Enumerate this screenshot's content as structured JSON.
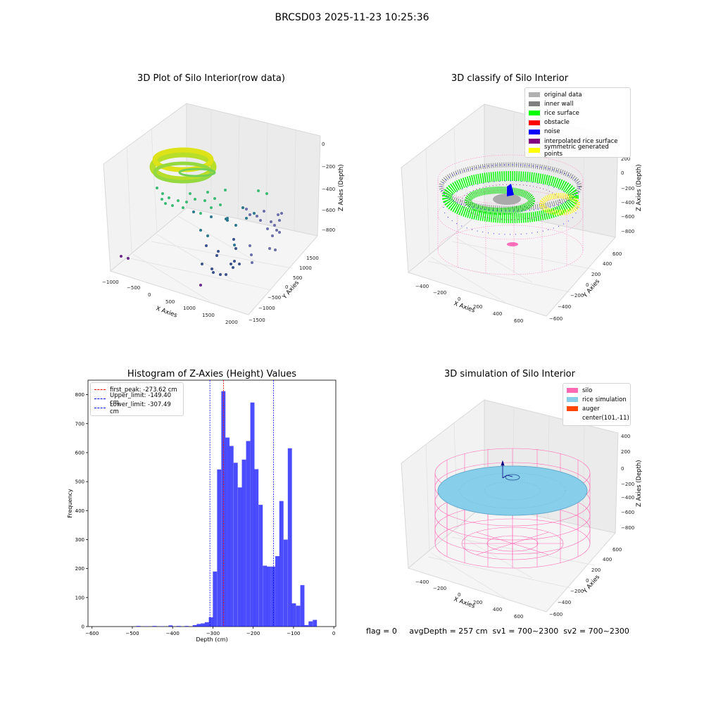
{
  "suptitle": "BRCSD03 2025-11-23 10:25:36",
  "panels": {
    "raw": {
      "title": "3D Plot of Silo Interior(row data)",
      "xlabel": "X Axies",
      "ylabel": "Y Axies",
      "zlabel": "Z Axies (Depth)",
      "xticks": [
        "−1000",
        "−500",
        "0",
        "500",
        "1000",
        "1500",
        "2000"
      ],
      "yticks": [
        "−1500",
        "−1000",
        "−500",
        "0",
        "500",
        "1000",
        "1500"
      ],
      "zticks": [
        "0",
        "−200",
        "−400",
        "−600",
        "−800"
      ]
    },
    "classify": {
      "title": "3D classify of Silo Interior",
      "xlabel": "X Axies",
      "ylabel": "Y Axies",
      "zlabel": "Z Axies (Depth)",
      "xticks": [
        "−400",
        "−200",
        "0",
        "200",
        "400",
        "600"
      ],
      "yticks": [
        "−600",
        "−400",
        "−200",
        "0",
        "200",
        "400",
        "600"
      ],
      "zticks": [
        "200",
        "0",
        "−200",
        "−400",
        "−600",
        "−800"
      ],
      "legend": [
        {
          "label": "original data",
          "color": "#b0b0b0"
        },
        {
          "label": "inner wall",
          "color": "#808080"
        },
        {
          "label": "rice surface",
          "color": "#00ff00"
        },
        {
          "label": "obstacle",
          "color": "#ff0000"
        },
        {
          "label": "noise",
          "color": "#0000ff"
        },
        {
          "label": "interpolated rice surface",
          "color": "#800080"
        },
        {
          "label": "symmetric generated points",
          "color": "#ffff00"
        }
      ]
    },
    "simulation": {
      "title": "3D simulation of Silo Interior",
      "xlabel": "X Axies",
      "ylabel": "Y Axies",
      "zlabel": "Z Axies (Depth)",
      "xticks": [
        "−400",
        "−200",
        "0",
        "200",
        "400",
        "600"
      ],
      "yticks": [
        "−600",
        "−400",
        "−200",
        "0",
        "200",
        "400",
        "600"
      ],
      "zticks": [
        "400",
        "200",
        "0",
        "−200",
        "−400",
        "−600",
        "−800"
      ],
      "legend": [
        {
          "label": "silo",
          "color": "#ff69b4"
        },
        {
          "label": "rice simulation",
          "color": "#87ceeb"
        },
        {
          "label": "auger",
          "color": "#ff4500"
        },
        {
          "label": "center(101,-11)",
          "color": ""
        }
      ]
    }
  },
  "chart_data": {
    "type": "bar",
    "title": "Histogram of Z-Axies (Height) Values",
    "xlabel": "Depth (cm)",
    "ylabel": "Frequency",
    "xlim": [
      -610,
      5
    ],
    "ylim": [
      0,
      850
    ],
    "xticks": [
      -600,
      -500,
      -400,
      -300,
      -200,
      -100,
      0
    ],
    "yticks": [
      0,
      100,
      200,
      300,
      400,
      500,
      600,
      700,
      800
    ],
    "bin_width": 10.3,
    "bar_color": "#0000ff",
    "bins": [
      {
        "x": -485,
        "count": 2
      },
      {
        "x": -465,
        "count": 1
      },
      {
        "x": -445,
        "count": 2
      },
      {
        "x": -425,
        "count": 1
      },
      {
        "x": -405,
        "count": 4
      },
      {
        "x": -385,
        "count": 2
      },
      {
        "x": -365,
        "count": 2
      },
      {
        "x": -345,
        "count": 5
      },
      {
        "x": -335,
        "count": 9
      },
      {
        "x": -325,
        "count": 11
      },
      {
        "x": -315,
        "count": 15
      },
      {
        "x": -305,
        "count": 32
      },
      {
        "x": -295,
        "count": 190
      },
      {
        "x": -284.5,
        "count": 542
      },
      {
        "x": -274,
        "count": 812
      },
      {
        "x": -264,
        "count": 652
      },
      {
        "x": -254,
        "count": 623
      },
      {
        "x": -243.5,
        "count": 565
      },
      {
        "x": -233,
        "count": 480
      },
      {
        "x": -223,
        "count": 576
      },
      {
        "x": -212.5,
        "count": 640
      },
      {
        "x": -202,
        "count": 773
      },
      {
        "x": -192,
        "count": 543
      },
      {
        "x": -181.5,
        "count": 420
      },
      {
        "x": -171,
        "count": 210
      },
      {
        "x": -161,
        "count": 207
      },
      {
        "x": -150.5,
        "count": 207
      },
      {
        "x": -140,
        "count": 243
      },
      {
        "x": -130,
        "count": 433
      },
      {
        "x": -119.5,
        "count": 300
      },
      {
        "x": -109,
        "count": 615
      },
      {
        "x": -99,
        "count": 80
      },
      {
        "x": -88.5,
        "count": 72
      },
      {
        "x": -78,
        "count": 143
      },
      {
        "x": -68,
        "count": 5
      },
      {
        "x": -57.5,
        "count": 18
      },
      {
        "x": -47,
        "count": 23
      }
    ],
    "lines": [
      {
        "label": "first_peak: -273.62 cm",
        "x": -273.62,
        "color": "#ff0000"
      },
      {
        "label": "Upper_limit: -149.40 cm",
        "x": -149.4,
        "color": "#0000ff"
      },
      {
        "label": "Lower_limit: -307.49 cm",
        "x": -307.49,
        "color": "#0000ff"
      }
    ]
  },
  "footer": {
    "text": "flag = 0     avgDepth = 257 cm  sv1 = 700~2300  sv2 = 700~2300"
  }
}
